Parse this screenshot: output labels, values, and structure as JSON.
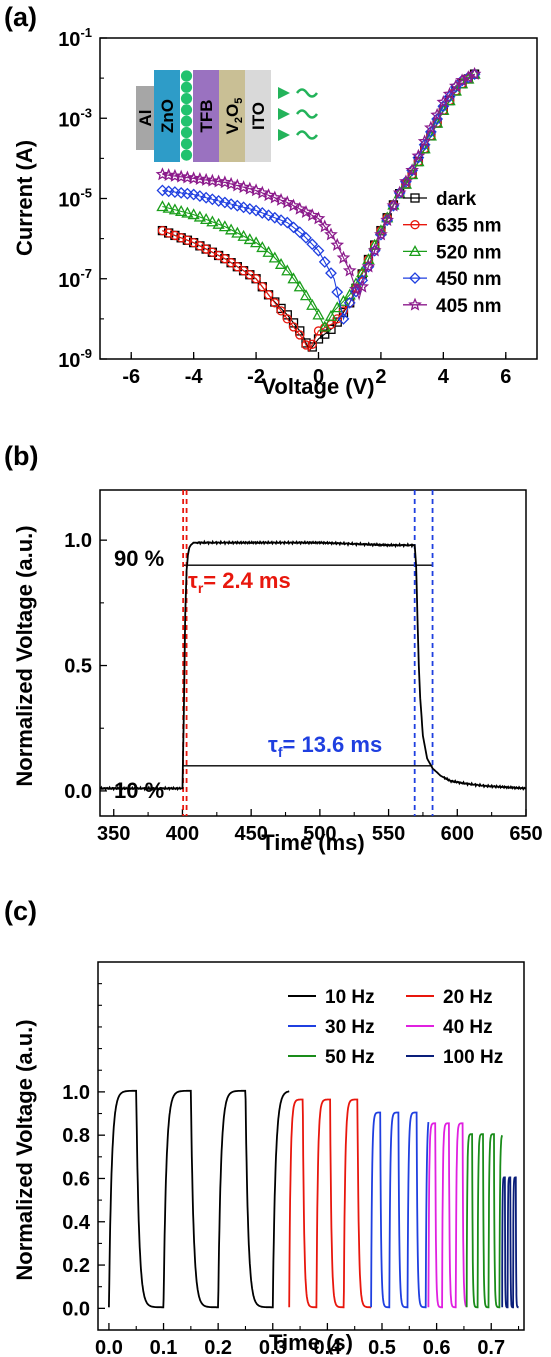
{
  "chart_data": [
    {
      "panel": "(a)",
      "type": "scatter",
      "xlabel": "Voltage (V)",
      "ylabel": "Current (A)",
      "xlim": [
        -7,
        7
      ],
      "ylim_log10": [
        -9,
        -1
      ],
      "y_scale": "log",
      "x_ticks": [
        "-6",
        "-4",
        "-2",
        "0",
        "2",
        "4",
        "6"
      ],
      "y_tick_exponents": [
        "-9",
        "-7",
        "-5",
        "-3",
        "-1"
      ],
      "y_tick_base": "10",
      "legend_position": "right",
      "inset_layers": [
        "Al",
        "ZnO",
        "TFB",
        "V2O5",
        "ITO"
      ],
      "series": [
        {
          "name": "dark",
          "marker": "square",
          "color": "#000000",
          "x": [
            -5,
            -4,
            -3,
            -2,
            -1.5,
            -1,
            -0.5,
            -0.3,
            0,
            0.5,
            1,
            1.5,
            2,
            2.5,
            3,
            3.5,
            4,
            4.5,
            5
          ],
          "log10_y": [
            -5.8,
            -6.1,
            -6.5,
            -7.0,
            -7.5,
            -7.9,
            -8.4,
            -8.8,
            -8.5,
            -8.2,
            -7.6,
            -6.7,
            -5.8,
            -5.0,
            -4.4,
            -3.6,
            -2.8,
            -2.2,
            -1.9
          ]
        },
        {
          "name": "635 nm",
          "marker": "circle",
          "color": "#e8170d",
          "x": [
            -5,
            -4,
            -3,
            -2,
            -1.5,
            -1,
            -0.5,
            -0.3,
            0,
            0.5,
            1,
            1.5,
            2,
            2.5,
            3,
            3.5,
            4,
            4.5,
            5
          ],
          "log10_y": [
            -5.8,
            -6.1,
            -6.5,
            -7.0,
            -7.5,
            -8.0,
            -8.5,
            -8.8,
            -8.3,
            -8.1,
            -7.6,
            -6.7,
            -5.8,
            -5.0,
            -4.4,
            -3.6,
            -2.8,
            -2.2,
            -1.9
          ]
        },
        {
          "name": "520 nm",
          "marker": "triangle",
          "color": "#1a9e1a",
          "x": [
            -5,
            -4,
            -3,
            -2,
            -1.5,
            -1,
            -0.5,
            0,
            0.2,
            0.5,
            1,
            1.5,
            2,
            2.5,
            3,
            3.5,
            4,
            4.5,
            5
          ],
          "log10_y": [
            -5.2,
            -5.4,
            -5.7,
            -6.1,
            -6.4,
            -6.8,
            -7.3,
            -7.9,
            -8.2,
            -7.8,
            -7.4,
            -6.7,
            -5.8,
            -5.0,
            -4.4,
            -3.6,
            -2.8,
            -2.2,
            -1.9
          ]
        },
        {
          "name": "450 nm",
          "marker": "diamond",
          "color": "#1f3fe0",
          "x": [
            -5,
            -4,
            -3,
            -2,
            -1,
            -0.5,
            0,
            0.5,
            0.8,
            1,
            1.5,
            2,
            2.5,
            3,
            3.5,
            4,
            4.5,
            5
          ],
          "log10_y": [
            -4.8,
            -4.9,
            -5.1,
            -5.3,
            -5.6,
            -5.9,
            -6.3,
            -7.0,
            -8.0,
            -7.6,
            -6.9,
            -5.9,
            -5.0,
            -4.3,
            -3.5,
            -2.7,
            -2.1,
            -1.9
          ]
        },
        {
          "name": "405 nm",
          "marker": "star",
          "color": "#8b1a8b",
          "x": [
            -5,
            -4,
            -3,
            -2,
            -1,
            0,
            0.5,
            1,
            1.3,
            1.5,
            2,
            2.5,
            3,
            3.5,
            4,
            4.5,
            5
          ],
          "log10_y": [
            -4.4,
            -4.5,
            -4.6,
            -4.8,
            -5.1,
            -5.5,
            -6.0,
            -6.8,
            -7.5,
            -6.9,
            -5.9,
            -5.0,
            -4.3,
            -3.4,
            -2.6,
            -2.1,
            -1.9
          ]
        }
      ]
    },
    {
      "panel": "(b)",
      "type": "line",
      "xlabel": "Time (ms)",
      "ylabel": "Normalized Voltage (a.u.)",
      "xlim": [
        340,
        650
      ],
      "ylim": [
        -0.1,
        1.2
      ],
      "x_ticks": [
        "350",
        "400",
        "450",
        "500",
        "550",
        "600",
        "650"
      ],
      "y_ticks": [
        "0.0",
        "0.5",
        "1.0"
      ],
      "series": [
        {
          "name": "",
          "color": "#000000",
          "x": [
            340,
            400,
            401,
            402,
            403,
            404,
            405,
            406,
            408,
            410,
            450,
            500,
            550,
            569,
            570,
            571,
            572,
            573,
            575,
            578,
            582,
            588,
            595,
            605,
            620,
            650
          ],
          "y": [
            0.01,
            0.01,
            0.3,
            0.7,
            0.88,
            0.94,
            0.97,
            0.98,
            0.99,
            0.99,
            0.99,
            0.99,
            0.98,
            0.98,
            0.9,
            0.7,
            0.5,
            0.37,
            0.22,
            0.13,
            0.09,
            0.06,
            0.04,
            0.03,
            0.02,
            0.01
          ]
        }
      ],
      "reference_lines": [
        {
          "label": "90 %",
          "y": 0.9,
          "x_range": [
            400,
            582
          ]
        },
        {
          "label": "10 %",
          "y": 0.1,
          "x_range": [
            400,
            582
          ]
        }
      ],
      "dashed_markers": [
        {
          "x": 400.5,
          "color": "#e8170d"
        },
        {
          "x": 403,
          "color": "#e8170d"
        },
        {
          "x": 569,
          "color": "#1f3fe0"
        },
        {
          "x": 582,
          "color": "#1f3fe0"
        }
      ]
    },
    {
      "panel": "(c)",
      "type": "line",
      "xlabel": "Time (s)",
      "ylabel": "Normalized Voltage (a.u.)",
      "xlim": [
        -0.02,
        0.76
      ],
      "ylim": [
        -0.1,
        1.6
      ],
      "x_ticks": [
        "0.0",
        "0.1",
        "0.2",
        "0.3",
        "0.4",
        "0.5",
        "0.6",
        "0.7"
      ],
      "y_ticks": [
        "0.0",
        "0.2",
        "0.4",
        "0.6",
        "0.8",
        "1.0"
      ],
      "legend_position": "top-right",
      "series": [
        {
          "name": "10 Hz",
          "color": "#000000",
          "start": 0.0,
          "end": 0.33,
          "freq": 10,
          "amplitude": 1.0
        },
        {
          "name": "20 Hz",
          "color": "#e8170d",
          "start": 0.33,
          "end": 0.48,
          "freq": 20,
          "amplitude": 0.96
        },
        {
          "name": "30 Hz",
          "color": "#1f3fe0",
          "start": 0.48,
          "end": 0.585,
          "freq": 30,
          "amplitude": 0.9
        },
        {
          "name": "40 Hz",
          "color": "#e020e0",
          "start": 0.585,
          "end": 0.655,
          "freq": 40,
          "amplitude": 0.85
        },
        {
          "name": "50 Hz",
          "color": "#1a8c1a",
          "start": 0.655,
          "end": 0.72,
          "freq": 50,
          "amplitude": 0.8
        },
        {
          "name": "100 Hz",
          "color": "#0a1e7a",
          "start": 0.72,
          "end": 0.75,
          "freq": 100,
          "amplitude": 0.6
        }
      ]
    }
  ],
  "labels": {
    "panel_a": "(a)",
    "panel_b": "(b)",
    "panel_c": "(c)",
    "ninety": "90 %",
    "ten": "10 %",
    "tau_r_sym": "τ",
    "tau_r_sub": "r",
    "tau_r_val": "= 2.4 ms",
    "tau_f_sym": "τ",
    "tau_f_sub": "f",
    "tau_f_val": "= 13.6 ms",
    "layer_al": "Al",
    "layer_zno": "ZnO",
    "layer_tfb": "TFB",
    "layer_v": "V",
    "layer_v_sub": "2",
    "layer_o": "O",
    "layer_o_sub": "5",
    "layer_ito": "ITO"
  },
  "colors": {
    "red": "#e8170d",
    "blue": "#1f3fe0",
    "layer_al": "#a6a6a6",
    "layer_zno": "#2e9cc8",
    "layer_dots": "#22c26e",
    "layer_tfb": "#9a72c0",
    "layer_v2o5": "#c9bf95",
    "layer_ito": "#d9d9d9",
    "light": "#23b35a"
  }
}
